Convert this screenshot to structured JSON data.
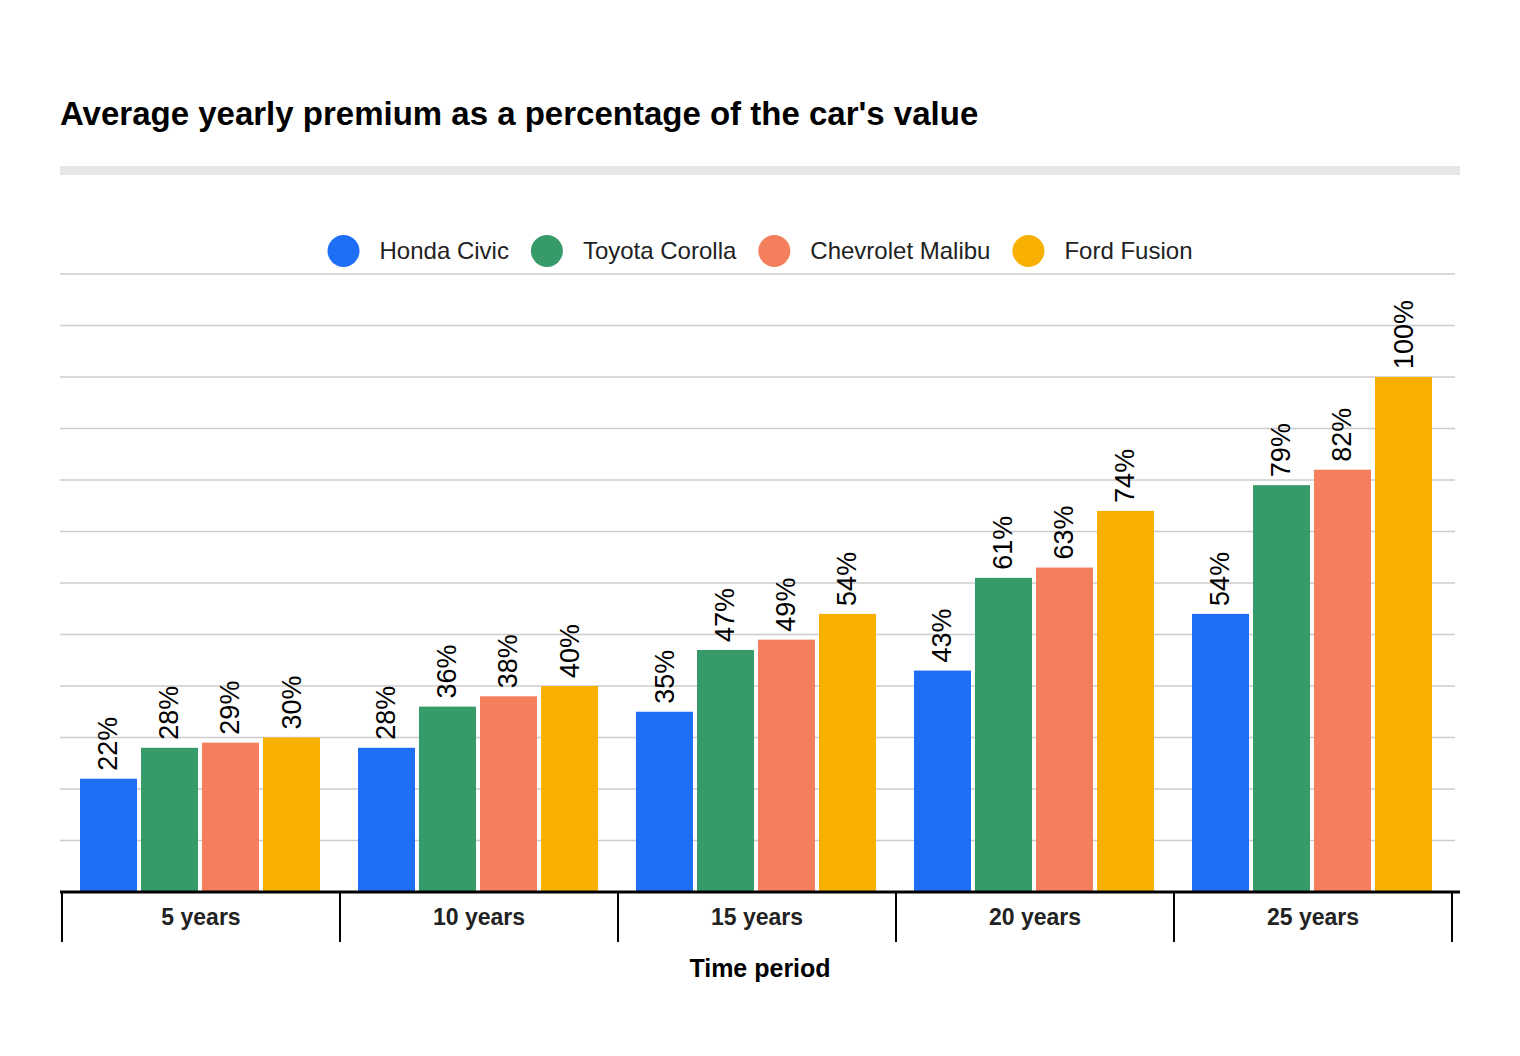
{
  "chart_data": {
    "type": "bar",
    "title": "Average yearly premium as a percentage of the car's value",
    "x_label": "Time period",
    "categories": [
      "5 years",
      "10 years",
      "15 years",
      "20 years",
      "25 years"
    ],
    "series": [
      {
        "name": "Honda Civic",
        "color": "#1e6ff5",
        "values": [
          22,
          28,
          35,
          43,
          54
        ],
        "value_labels": [
          "22%",
          "28%",
          "35%",
          "43%",
          "54%"
        ]
      },
      {
        "name": "Toyota Corolla",
        "color": "#369a69",
        "values": [
          28,
          36,
          47,
          61,
          79
        ],
        "value_labels": [
          "28%",
          "36%",
          "47%",
          "61%",
          "79%"
        ]
      },
      {
        "name": "Chevrolet Malibu",
        "color": "#f47f5d",
        "values": [
          29,
          38,
          49,
          63,
          82
        ],
        "value_labels": [
          "29%",
          "38%",
          "49%",
          "63%",
          "82%"
        ]
      },
      {
        "name": "Ford Fusion",
        "color": "#f8b100",
        "values": [
          30,
          40,
          54,
          74,
          100
        ],
        "value_labels": [
          "30%",
          "40%",
          "54%",
          "74%",
          "100%"
        ]
      }
    ],
    "ylim": [
      0,
      120
    ],
    "yticks": [
      0,
      10,
      20,
      30,
      40,
      50,
      60,
      70,
      80,
      90,
      100,
      110,
      120
    ],
    "grid": true,
    "legend": "top",
    "data_labels": true,
    "tick_labels": "x"
  }
}
